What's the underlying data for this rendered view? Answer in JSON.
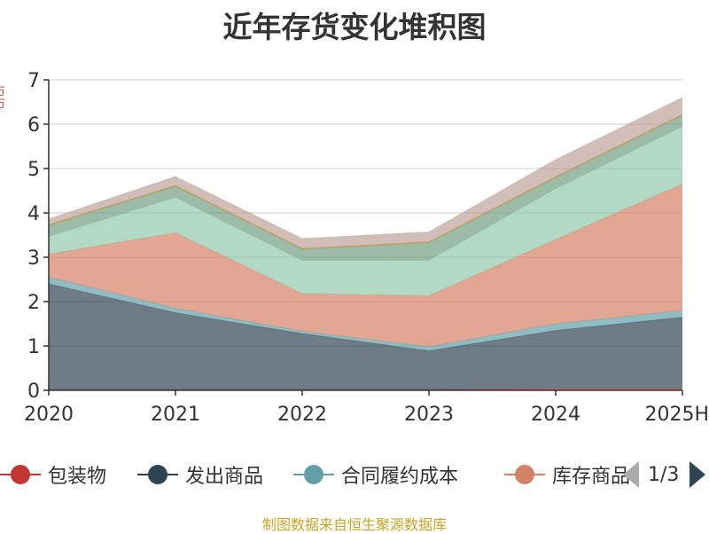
{
  "chart_data": {
    "type": "area",
    "stacked": true,
    "title": "近年存货变化堆积图",
    "categories": [
      "2020",
      "2021",
      "2022",
      "2023",
      "2024",
      "2025H"
    ],
    "ylim": [
      0,
      7
    ],
    "yticks": [
      "0",
      "1",
      "2",
      "3",
      "4",
      "5",
      "6",
      "7"
    ],
    "grid": true,
    "series": [
      {
        "name": "包装物",
        "color": "#c23531",
        "values": [
          0.02,
          0.02,
          0.02,
          0.02,
          0.04,
          0.04
        ]
      },
      {
        "name": "发出商品",
        "color": "#2f4554",
        "values": [
          2.38,
          1.73,
          1.26,
          0.87,
          1.31,
          1.61
        ]
      },
      {
        "name": "合同履约成本",
        "color": "#61a0a8",
        "values": [
          0.15,
          0.1,
          0.05,
          0.09,
          0.15,
          0.15
        ]
      },
      {
        "name": "库存商品",
        "color": "#d48265",
        "values": [
          0.52,
          1.7,
          0.85,
          1.15,
          1.9,
          2.85
        ]
      },
      {
        "name": "",
        "color": "#91c7ae",
        "values": [
          0.4,
          0.8,
          0.75,
          0.8,
          1.15,
          1.3
        ]
      },
      {
        "name": "",
        "color": "#749f83",
        "values": [
          0.25,
          0.25,
          0.25,
          0.4,
          0.25,
          0.25
        ]
      },
      {
        "name": "",
        "color": "#ca8622",
        "values": [
          0.02,
          0.02,
          0.02,
          0.02,
          0.02,
          0.02
        ]
      },
      {
        "name": "",
        "color": "#bda29a",
        "values": [
          0.12,
          0.2,
          0.22,
          0.22,
          0.38,
          0.38
        ]
      }
    ]
  },
  "legend": {
    "items": [
      "包装物",
      "发出商品",
      "合同履约成本",
      "库存商品"
    ],
    "page_indicator": "1/3"
  },
  "footer": {
    "source": "制图数据来自恒生聚源数据库"
  },
  "colors": {
    "source_text": "#c8a52a",
    "axis_label": "#c23531"
  }
}
